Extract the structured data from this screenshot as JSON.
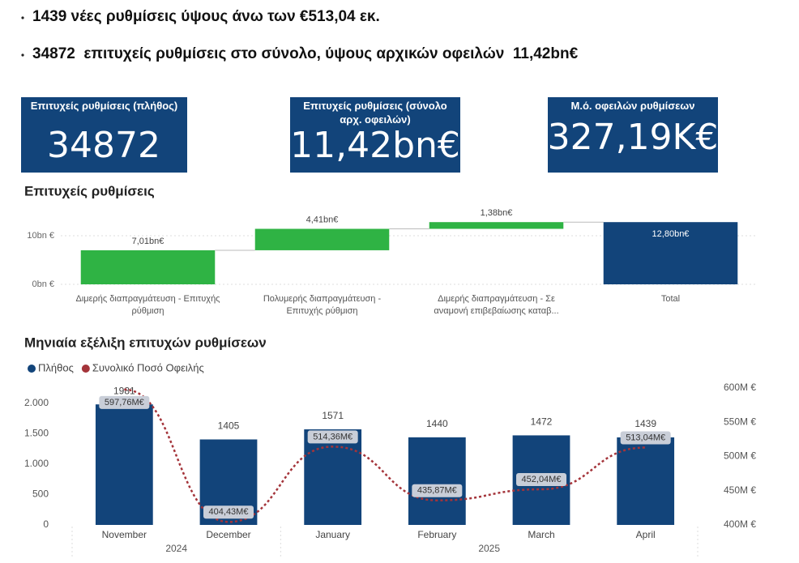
{
  "bullets": [
    "1439 νέες ρυθμίσεις ύψους άνω των €513,04 εκ.",
    "34872  επιτυχείς ρυθμίσεις στο σύνολο, ύψους αρχικών οφειλών  11,42bn€"
  ],
  "kpis": [
    {
      "label": "Επιτυχείς ρυθμίσεις (πλήθος)",
      "value": "34872"
    },
    {
      "label": "Επιτυχείς ρυθμίσεις (σύνολο αρχ. οφειλών)",
      "value": "11,42bn€"
    },
    {
      "label": "Μ.ό. οφειλών ρυθμίσεων",
      "value": "327,19K€"
    }
  ],
  "chart_data": [
    {
      "type": "waterfall",
      "title": "Επιτυχείς ρυθμίσεις",
      "categories": [
        "Διμερής διαπραγμάτευση - Επιτυχής ρύθμιση",
        "Πολυμερής διαπραγμάτευση - Επιτυχής ρύθμιση",
        "Διμερής διαπραγμάτευση - Σε αναμονή επιβεβαίωσης καταβ...",
        "Total"
      ],
      "values": [
        7.01,
        4.41,
        1.38,
        12.8
      ],
      "value_labels": [
        "7,01bn€",
        "4,41bn€",
        "1,38bn€",
        "12,80bn€"
      ],
      "increase_color": "#2fb344",
      "total_color": "#12447a",
      "ylim": [
        0,
        14
      ],
      "yticks": [
        {
          "value": 0,
          "label": "0bn €"
        },
        {
          "value": 10,
          "label": "10bn €"
        }
      ],
      "grid": true
    },
    {
      "type": "combo",
      "title": "Μηνιαία εξέλιξη επιτυχών ρυθμίσεων",
      "categories": [
        "November",
        "December",
        "January",
        "February",
        "March",
        "April"
      ],
      "years": [
        "2024",
        "2024",
        "2025",
        "2025",
        "2025",
        "2025"
      ],
      "series": [
        {
          "name": "Πλήθος",
          "color": "#12447a",
          "kind": "bar",
          "values": [
            1981,
            1405,
            1571,
            1440,
            1472,
            1439
          ]
        },
        {
          "name": "Συνολικό Ποσό Οφειλής",
          "color": "#a4343a",
          "kind": "line",
          "axis": "y2",
          "values": [
            597.76,
            404.43,
            514.36,
            435.87,
            452.04,
            513.04
          ],
          "value_labels": [
            "597,76M€",
            "404,43M€",
            "514,36M€",
            "435,87M€",
            "452,04M€",
            "513,04M€"
          ]
        }
      ],
      "ylim": [
        0,
        2250
      ],
      "yticks": [
        0,
        500,
        {
          "value": 1000,
          "label": "1.000"
        },
        {
          "value": 1500,
          "label": "1.500"
        },
        {
          "value": 2000,
          "label": "2.000"
        }
      ],
      "y2lim": [
        400,
        600
      ],
      "y2ticks": [
        {
          "value": 400,
          "label": "400M €"
        },
        {
          "value": 450,
          "label": "450M €"
        },
        {
          "value": 500,
          "label": "500M €"
        },
        {
          "value": 550,
          "label": "550M €"
        },
        {
          "value": 600,
          "label": "600M €"
        }
      ]
    }
  ]
}
